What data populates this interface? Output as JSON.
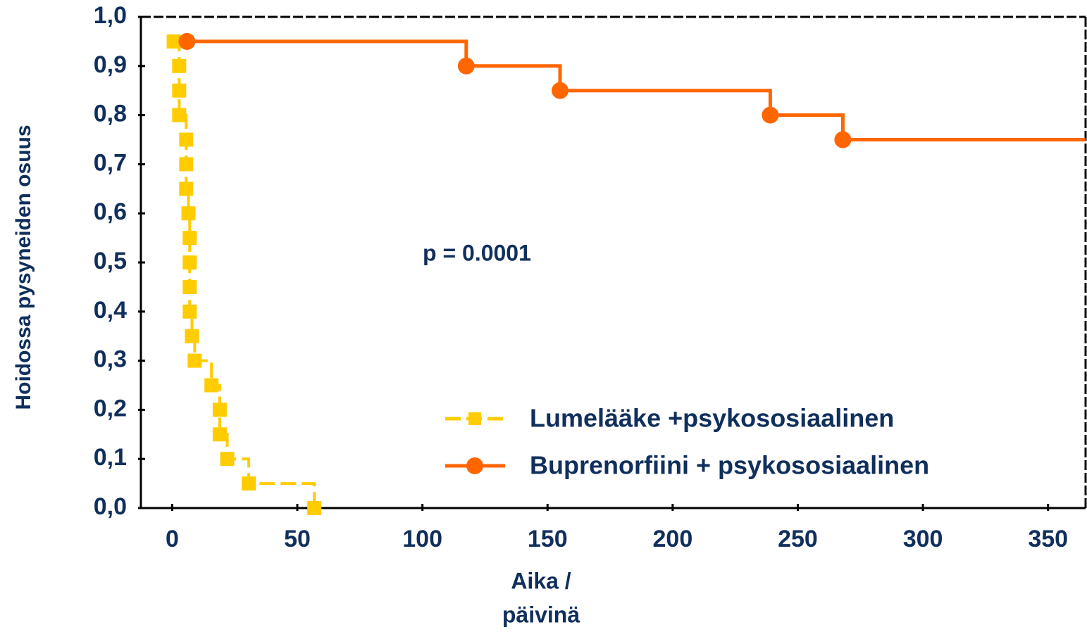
{
  "chart_data": {
    "type": "step",
    "ylabel": "Hoidossa pysyneiden osuus",
    "xlabel": [
      "Aika /",
      "päivinä"
    ],
    "annotation": "p = 0.0001",
    "xlim": [
      -12.5,
      365
    ],
    "ylim": [
      0,
      1
    ],
    "xticks": [
      0,
      50,
      100,
      150,
      200,
      250,
      300,
      350
    ],
    "yticks": [
      {
        "value": 0,
        "label": "0,0"
      },
      {
        "value": 0.1,
        "label": "0,1"
      },
      {
        "value": 0.2,
        "label": "0,2"
      },
      {
        "value": 0.3,
        "label": "0,3"
      },
      {
        "value": 0.4,
        "label": "0,4"
      },
      {
        "value": 0.5,
        "label": "0,5"
      },
      {
        "value": 0.6,
        "label": "0,6"
      },
      {
        "value": 0.7,
        "label": "0,7"
      },
      {
        "value": 0.8,
        "label": "0,8"
      },
      {
        "value": 0.9,
        "label": "0,9"
      },
      {
        "value": 1,
        "label": "1,0"
      }
    ],
    "legend": "lower right",
    "series": [
      {
        "name": "Lumelääke +psykososiaalinen",
        "color": "#ffcc00",
        "marker": "square",
        "dashed": true,
        "x": [
          0.6,
          2.8,
          2.8,
          2.8,
          5.6,
          5.6,
          5.6,
          6.5,
          7,
          7,
          7,
          7,
          7.9,
          9,
          15.7,
          19,
          19,
          22,
          30.6,
          56.8
        ],
        "values": [
          0.95,
          0.9,
          0.85,
          0.8,
          0.75,
          0.7,
          0.65,
          0.6,
          0.55,
          0.5,
          0.45,
          0.4,
          0.35,
          0.3,
          0.25,
          0.2,
          0.15,
          0.1,
          0.05,
          0
        ]
      },
      {
        "name": "Buprenorfiini + psykososiaalinen",
        "color": "#ff6600",
        "marker": "circle",
        "dashed": false,
        "x": [
          5.9,
          117.5,
          155,
          239,
          268
        ],
        "values": [
          0.95,
          0.9,
          0.85,
          0.8,
          0.75
        ]
      }
    ]
  }
}
